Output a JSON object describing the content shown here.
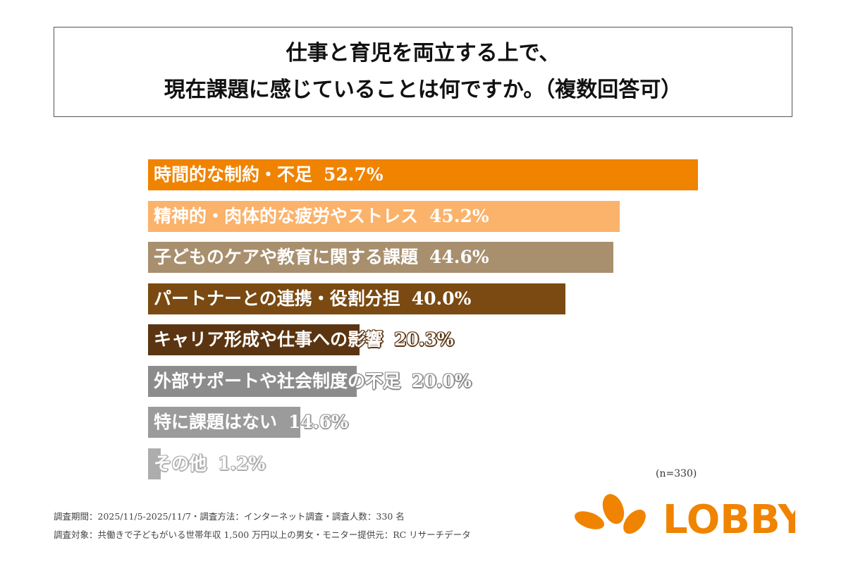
{
  "title": {
    "line1": "仕事と育児を両立する上で、",
    "line2": "現在課題に感じていることは何ですか。（複数回答可）"
  },
  "chart_data": {
    "type": "bar",
    "orientation": "horizontal",
    "unit": "%",
    "categories": [
      "時間的な制約・不足",
      "精神的・肉体的な疲労やストレス",
      "子どものケアや教育に関する課題",
      "パートナーとの連携・役割分担",
      "キャリア形成や仕事への影響",
      "外部サポートや社会制度の不足",
      "特に課題はない",
      "その他"
    ],
    "values": [
      52.7,
      45.2,
      44.6,
      40.0,
      20.3,
      20.0,
      14.6,
      1.2
    ],
    "value_labels": [
      "52.7%",
      "45.2%",
      "44.6%",
      "40.0%",
      "20.3%",
      "20.0%",
      "14.6%",
      "1.2%"
    ],
    "colors": [
      "#F08300",
      "#FBB26A",
      "#A88F6E",
      "#7A4A12",
      "#5B3511",
      "#8C8C8C",
      "#9B9B9B",
      "#ADADAD"
    ],
    "xlim": [
      0,
      52.7
    ]
  },
  "sample": "(n=330)",
  "footer": {
    "line1": "調査期間：2025/11/5-2025/11/7・調査方法：インターネット調査・調査人数：330 名",
    "line2": "調査対象：共働きで子どもがいる世帯年収 1,500 万円以上の男女・モニター提供元：RC リサーチデータ"
  },
  "logo": {
    "text": "LOBBY",
    "color": "#F08300"
  }
}
